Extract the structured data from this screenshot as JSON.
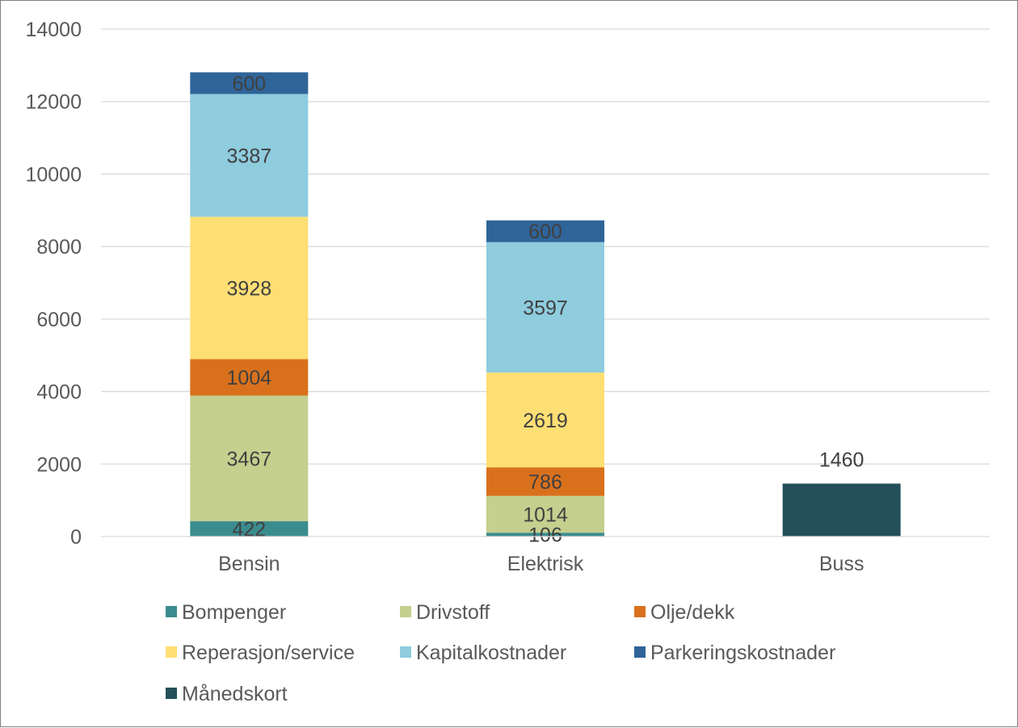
{
  "chart_data": {
    "type": "bar",
    "stacked": true,
    "categories": [
      "Bensin",
      "Elektrisk",
      "Buss"
    ],
    "series": [
      {
        "name": "Bompenger",
        "color": "#3A8C8E",
        "values": [
          422,
          106,
          null
        ]
      },
      {
        "name": "Drivstoff",
        "color": "#C5CF8E",
        "values": [
          3467,
          1014,
          null
        ]
      },
      {
        "name": "Olje/dekk",
        "color": "#D9711C",
        "values": [
          1004,
          786,
          null
        ]
      },
      {
        "name": "Reperasjon/service",
        "color": "#FEDF74",
        "values": [
          3928,
          2619,
          null
        ]
      },
      {
        "name": "Kapitalkostnader",
        "color": "#8ECCDE",
        "values": [
          3387,
          3597,
          null
        ]
      },
      {
        "name": "Parkeringskostnader",
        "color": "#2F6499",
        "values": [
          600,
          600,
          null
        ]
      },
      {
        "name": "Månedskort",
        "color": "#24505A",
        "values": [
          null,
          null,
          1460
        ]
      }
    ],
    "ylim": [
      0,
      14000
    ],
    "yticks": [
      0,
      2000,
      4000,
      6000,
      8000,
      10000,
      12000,
      14000
    ],
    "grid": true,
    "legend_position": "bottom",
    "title": "",
    "xlabel": "",
    "ylabel": ""
  }
}
